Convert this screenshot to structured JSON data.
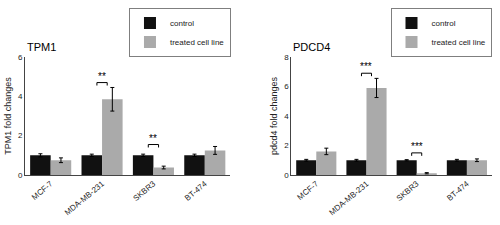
{
  "chart_data": [
    {
      "type": "bar",
      "title": "TPM1",
      "ylabel": "TPM1 fold changes",
      "categories": [
        "MCF-7",
        "MDA-MB-231",
        "SKBR3",
        "BT-474"
      ],
      "series": [
        {
          "name": "control",
          "color": "#111111",
          "values": [
            1.0,
            1.0,
            1.0,
            1.0
          ],
          "errors": [
            0.08,
            0.06,
            0.06,
            0.06
          ]
        },
        {
          "name": "treated cell line",
          "color": "#aaaaaa",
          "values": [
            0.75,
            3.85,
            0.38,
            1.25
          ],
          "errors": [
            0.12,
            0.6,
            0.07,
            0.2
          ]
        }
      ],
      "ylim": [
        0,
        6
      ],
      "yticks": [
        0,
        2,
        4,
        6
      ],
      "grid": false,
      "legend": "upper right",
      "annotations": [
        {
          "category": "MDA-MB-231",
          "label": "**",
          "y": 4.7
        },
        {
          "category": "SKBR3",
          "label": "**",
          "y": 1.55
        }
      ]
    },
    {
      "type": "bar",
      "title": "PDCD4",
      "ylabel": "pdcd4 fold changes",
      "categories": [
        "MCF-7",
        "MDA-MB-231",
        "SKBR3",
        "BT-474"
      ],
      "series": [
        {
          "name": "control",
          "color": "#111111",
          "values": [
            1.0,
            1.0,
            1.0,
            1.0
          ],
          "errors": [
            0.06,
            0.06,
            0.04,
            0.06
          ]
        },
        {
          "name": "treated cell line",
          "color": "#aaaaaa",
          "values": [
            1.6,
            5.9,
            0.12,
            1.0
          ],
          "errors": [
            0.22,
            0.65,
            0.04,
            0.09
          ]
        }
      ],
      "ylim": [
        0,
        8
      ],
      "yticks": [
        0,
        2,
        4,
        6,
        8
      ],
      "grid": false,
      "legend": "upper right",
      "annotations": [
        {
          "category": "MDA-MB-231",
          "label": "***",
          "y": 6.9
        },
        {
          "category": "SKBR3",
          "label": "***",
          "y": 1.5
        }
      ]
    }
  ]
}
